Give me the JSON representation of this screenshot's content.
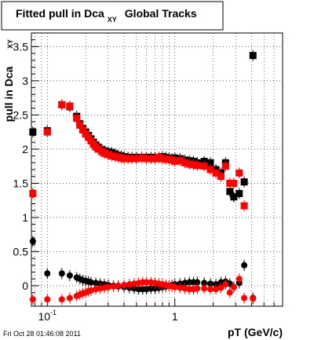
{
  "title": {
    "main": "Fitted pull in Dca",
    "subscript": "XY",
    "suffix": "Global Tracks"
  },
  "footer_text": "Fri Oct 28 01:46:08 2011",
  "chart_data": {
    "type": "scatter",
    "title": "Fitted pull in Dca XY Global Tracks",
    "xlabel": "pT (GeV/c)",
    "ylabel": "pull in Dca",
    "ylabel_superscript": "XY",
    "x_scale": "log",
    "xlim": [
      0.075,
      7.0
    ],
    "ylim": [
      -0.3,
      3.7
    ],
    "x_tick_labels": [
      {
        "value": 0.1,
        "base": "10",
        "exp": "-1"
      },
      {
        "value": 1,
        "base": "1",
        "exp": ""
      }
    ],
    "y_ticks": [
      0,
      0.5,
      1,
      1.5,
      2,
      2.5,
      3,
      3.5
    ],
    "y_tick_labels": [
      "0",
      "0.5",
      "1",
      "1.5",
      "2",
      "2.5",
      "3",
      "3.5"
    ],
    "grid": true,
    "series": [
      {
        "color": "#000000",
        "marker": "square",
        "points": [
          [
            0.077,
            2.25
          ],
          [
            0.1,
            2.27
          ],
          [
            0.13,
            2.65
          ],
          [
            0.15,
            2.62
          ],
          [
            0.17,
            2.48
          ],
          [
            0.18,
            2.37
          ],
          [
            0.19,
            2.3
          ],
          [
            0.2,
            2.25
          ],
          [
            0.21,
            2.2
          ],
          [
            0.22,
            2.15
          ],
          [
            0.23,
            2.1
          ],
          [
            0.24,
            2.06
          ],
          [
            0.25,
            2.03
          ],
          [
            0.27,
            1.99
          ],
          [
            0.28,
            1.97
          ],
          [
            0.3,
            1.96
          ],
          [
            0.32,
            1.95
          ],
          [
            0.34,
            1.93
          ],
          [
            0.36,
            1.91
          ],
          [
            0.38,
            1.9
          ],
          [
            0.4,
            1.89
          ],
          [
            0.43,
            1.88
          ],
          [
            0.46,
            1.88
          ],
          [
            0.5,
            1.88
          ],
          [
            0.55,
            1.88
          ],
          [
            0.6,
            1.88
          ],
          [
            0.65,
            1.88
          ],
          [
            0.7,
            1.88
          ],
          [
            0.75,
            1.88
          ],
          [
            0.8,
            1.89
          ],
          [
            0.85,
            1.88
          ],
          [
            0.9,
            1.87
          ],
          [
            0.95,
            1.86
          ],
          [
            1.0,
            1.87
          ],
          [
            1.1,
            1.86
          ],
          [
            1.2,
            1.84
          ],
          [
            1.3,
            1.83
          ],
          [
            1.4,
            1.82
          ],
          [
            1.5,
            1.8
          ],
          [
            1.7,
            1.82
          ],
          [
            1.9,
            1.8
          ],
          [
            2.1,
            1.7
          ],
          [
            2.3,
            1.65
          ],
          [
            2.5,
            1.8
          ],
          [
            2.7,
            1.38
          ],
          [
            2.9,
            1.3
          ],
          [
            3.2,
            1.35
          ],
          [
            3.5,
            1.52
          ],
          [
            4.1,
            3.37
          ]
        ]
      },
      {
        "color": "#ff0000",
        "marker": "square",
        "points": [
          [
            0.077,
            1.35
          ],
          [
            0.1,
            2.25
          ],
          [
            0.13,
            2.65
          ],
          [
            0.15,
            2.63
          ],
          [
            0.17,
            2.45
          ],
          [
            0.18,
            2.35
          ],
          [
            0.19,
            2.28
          ],
          [
            0.2,
            2.22
          ],
          [
            0.21,
            2.17
          ],
          [
            0.22,
            2.12
          ],
          [
            0.23,
            2.07
          ],
          [
            0.24,
            2.03
          ],
          [
            0.25,
            2.0
          ],
          [
            0.27,
            1.96
          ],
          [
            0.28,
            1.94
          ],
          [
            0.3,
            1.92
          ],
          [
            0.32,
            1.9
          ],
          [
            0.34,
            1.89
          ],
          [
            0.36,
            1.88
          ],
          [
            0.38,
            1.87
          ],
          [
            0.4,
            1.86
          ],
          [
            0.43,
            1.86
          ],
          [
            0.46,
            1.86
          ],
          [
            0.5,
            1.86
          ],
          [
            0.55,
            1.87
          ],
          [
            0.6,
            1.86
          ],
          [
            0.65,
            1.86
          ],
          [
            0.7,
            1.86
          ],
          [
            0.75,
            1.88
          ],
          [
            0.8,
            1.86
          ],
          [
            0.85,
            1.85
          ],
          [
            0.9,
            1.85
          ],
          [
            0.95,
            1.84
          ],
          [
            1.0,
            1.82
          ],
          [
            1.1,
            1.83
          ],
          [
            1.2,
            1.8
          ],
          [
            1.3,
            1.78
          ],
          [
            1.4,
            1.77
          ],
          [
            1.5,
            1.76
          ],
          [
            1.7,
            1.75
          ],
          [
            1.9,
            1.7
          ],
          [
            2.1,
            1.65
          ],
          [
            2.3,
            1.6
          ],
          [
            2.5,
            1.75
          ],
          [
            2.7,
            1.5
          ],
          [
            2.9,
            1.5
          ],
          [
            3.2,
            1.65
          ],
          [
            3.5,
            1.17
          ]
        ]
      },
      {
        "color": "#000000",
        "marker": "circle",
        "points": [
          [
            0.077,
            0.65
          ],
          [
            0.1,
            0.18
          ],
          [
            0.13,
            0.18
          ],
          [
            0.15,
            0.15
          ],
          [
            0.17,
            0.12
          ],
          [
            0.18,
            0.1
          ],
          [
            0.19,
            0.08
          ],
          [
            0.2,
            0.07
          ],
          [
            0.21,
            0.06
          ],
          [
            0.22,
            0.05
          ],
          [
            0.24,
            0.04
          ],
          [
            0.26,
            0.03
          ],
          [
            0.28,
            0.02
          ],
          [
            0.3,
            0.01
          ],
          [
            0.33,
            0.0
          ],
          [
            0.36,
            -0.01
          ],
          [
            0.4,
            -0.02
          ],
          [
            0.44,
            -0.03
          ],
          [
            0.48,
            -0.04
          ],
          [
            0.52,
            -0.05
          ],
          [
            0.56,
            -0.05
          ],
          [
            0.6,
            -0.05
          ],
          [
            0.65,
            -0.04
          ],
          [
            0.7,
            -0.04
          ],
          [
            0.75,
            -0.03
          ],
          [
            0.8,
            -0.02
          ],
          [
            0.85,
            -0.01
          ],
          [
            0.9,
            0.0
          ],
          [
            0.95,
            0.01
          ],
          [
            1.0,
            0.02
          ],
          [
            1.1,
            0.03
          ],
          [
            1.2,
            0.04
          ],
          [
            1.3,
            0.05
          ],
          [
            1.4,
            0.05
          ],
          [
            1.5,
            0.05
          ],
          [
            1.7,
            0.04
          ],
          [
            1.9,
            0.03
          ],
          [
            2.1,
            0.02
          ],
          [
            2.3,
            0.05
          ],
          [
            2.5,
            0.06
          ],
          [
            2.7,
            0.03
          ],
          [
            2.9,
            -0.02
          ],
          [
            3.2,
            0.04
          ],
          [
            3.5,
            0.3
          ],
          [
            4.1,
            -0.18
          ]
        ]
      },
      {
        "color": "#ff0000",
        "marker": "circle",
        "points": [
          [
            0.077,
            -0.2
          ],
          [
            0.1,
            -0.2
          ],
          [
            0.13,
            -0.2
          ],
          [
            0.15,
            -0.18
          ],
          [
            0.17,
            -0.15
          ],
          [
            0.18,
            -0.13
          ],
          [
            0.19,
            -0.11
          ],
          [
            0.2,
            -0.1
          ],
          [
            0.21,
            -0.08
          ],
          [
            0.22,
            -0.07
          ],
          [
            0.24,
            -0.05
          ],
          [
            0.26,
            -0.04
          ],
          [
            0.28,
            -0.03
          ],
          [
            0.3,
            -0.02
          ],
          [
            0.33,
            -0.01
          ],
          [
            0.36,
            0.0
          ],
          [
            0.4,
            0.01
          ],
          [
            0.44,
            0.02
          ],
          [
            0.48,
            0.03
          ],
          [
            0.52,
            0.04
          ],
          [
            0.56,
            0.05
          ],
          [
            0.6,
            0.05
          ],
          [
            0.65,
            0.05
          ],
          [
            0.7,
            0.04
          ],
          [
            0.75,
            0.03
          ],
          [
            0.8,
            0.02
          ],
          [
            0.85,
            0.01
          ],
          [
            0.9,
            0.0
          ],
          [
            0.95,
            -0.01
          ],
          [
            1.0,
            -0.02
          ],
          [
            1.1,
            -0.03
          ],
          [
            1.2,
            -0.04
          ],
          [
            1.3,
            -0.05
          ],
          [
            1.4,
            -0.05
          ],
          [
            1.5,
            -0.04
          ],
          [
            1.7,
            -0.04
          ],
          [
            1.9,
            -0.05
          ],
          [
            2.1,
            -0.05
          ],
          [
            2.3,
            -0.03
          ],
          [
            2.5,
            0.02
          ],
          [
            2.7,
            -0.1
          ],
          [
            2.9,
            -0.02
          ],
          [
            3.2,
            0.1
          ],
          [
            3.5,
            -0.18
          ],
          [
            4.1,
            -0.19
          ]
        ]
      }
    ]
  }
}
